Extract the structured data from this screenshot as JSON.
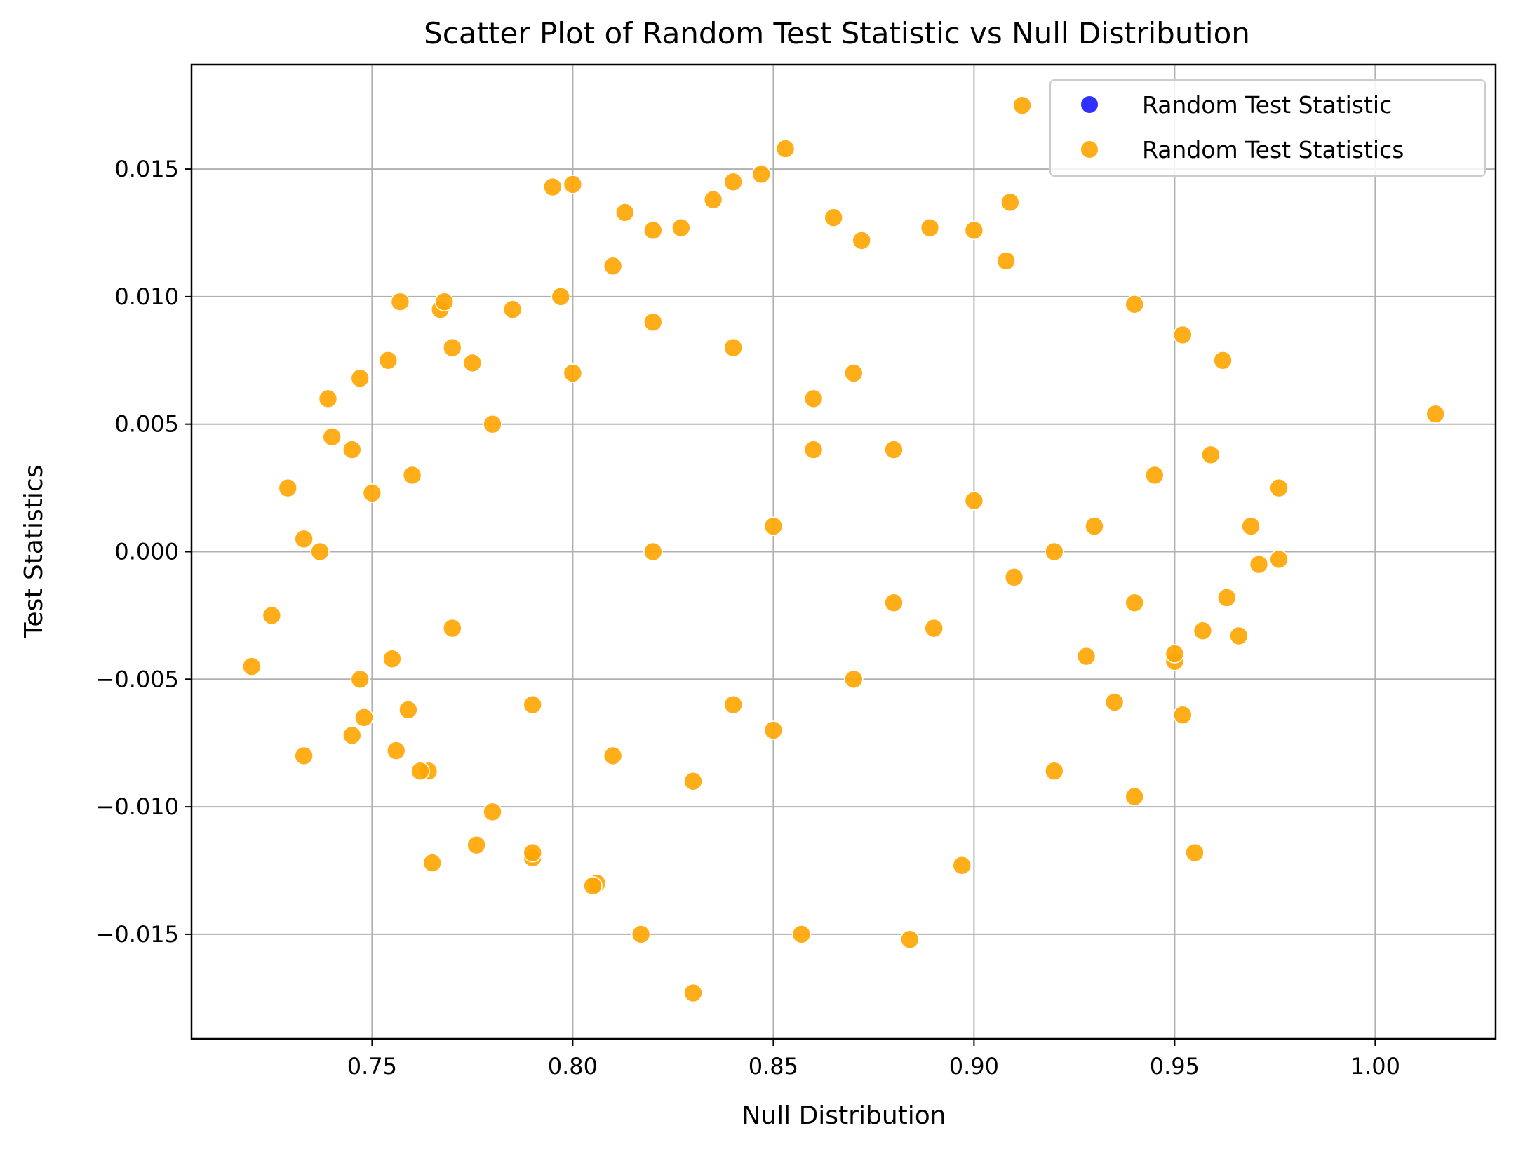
{
  "chart_data": {
    "type": "scatter",
    "title": "Scatter Plot of Random Test Statistic vs Null Distribution",
    "xlabel": "Null Distribution",
    "ylabel": "Test Statistics",
    "xlim": [
      0.705,
      1.03
    ],
    "ylim": [
      -0.0191,
      0.0191
    ],
    "x_ticks": [
      0.75,
      0.8,
      0.85,
      0.9,
      0.95,
      1.0
    ],
    "x_tick_labels": [
      "0.75",
      "0.80",
      "0.85",
      "0.90",
      "0.95",
      "1.00"
    ],
    "y_ticks": [
      -0.015,
      -0.01,
      -0.005,
      0.0,
      0.005,
      0.01,
      0.015
    ],
    "y_tick_labels": [
      "−0.015",
      "−0.010",
      "−0.005",
      "0.000",
      "0.005",
      "0.010",
      "0.015"
    ],
    "grid": true,
    "legend_position": "top-right",
    "series": [
      {
        "name": "Random Test Statistic",
        "color": "#1a1aff",
        "x": [],
        "y": []
      },
      {
        "name": "Random Test Statistics",
        "color": "#ffa500",
        "x": [
          0.72,
          0.725,
          0.729,
          0.733,
          0.733,
          0.737,
          0.739,
          0.74,
          0.745,
          0.745,
          0.747,
          0.747,
          0.748,
          0.754,
          0.756,
          0.757,
          0.759,
          0.764,
          0.765,
          0.767,
          0.768,
          0.776,
          0.77,
          0.785,
          0.79,
          0.795,
          0.797,
          0.8,
          0.806,
          0.813,
          0.817,
          0.83,
          0.847,
          0.853,
          0.857,
          0.884,
          0.909,
          0.912,
          0.952,
          0.955,
          0.94,
          0.962,
          0.969,
          0.976,
          0.976,
          0.971,
          1.015,
          0.959,
          0.957,
          0.966,
          0.963,
          0.95,
          0.952,
          0.94,
          0.935,
          0.928,
          0.92,
          0.908,
          0.9,
          0.897,
          0.889,
          0.872,
          0.865,
          0.84,
          0.835,
          0.827,
          0.82,
          0.81,
          0.805,
          0.79,
          0.78,
          0.775,
          0.762,
          0.755,
          0.75,
          0.76,
          0.77,
          0.78,
          0.79,
          0.8,
          0.81,
          0.82,
          0.83,
          0.84,
          0.85,
          0.86,
          0.87,
          0.88,
          0.89,
          0.9,
          0.91,
          0.92,
          0.93,
          0.94,
          0.945,
          0.95,
          0.82,
          0.85,
          0.88,
          0.86,
          0.84,
          0.87
        ],
        "y": [
          -0.0045,
          -0.0025,
          0.0025,
          0.0005,
          -0.008,
          0.0,
          0.006,
          0.0045,
          0.004,
          -0.0072,
          0.0068,
          -0.005,
          -0.0065,
          0.0075,
          -0.0078,
          0.0098,
          -0.0062,
          -0.0086,
          -0.0122,
          0.0095,
          0.0098,
          -0.0115,
          0.008,
          0.0095,
          -0.012,
          0.0143,
          0.01,
          0.0144,
          -0.013,
          0.0133,
          -0.015,
          -0.0173,
          0.0148,
          0.0158,
          -0.015,
          -0.0152,
          0.0137,
          0.0175,
          0.0085,
          -0.0118,
          -0.0096,
          0.0075,
          0.001,
          0.0025,
          -0.0003,
          -0.0005,
          0.0054,
          0.0038,
          -0.0031,
          -0.0033,
          -0.0018,
          -0.0043,
          -0.0064,
          0.0097,
          -0.0059,
          -0.0041,
          -0.0086,
          0.0114,
          0.0126,
          -0.0123,
          0.0127,
          0.0122,
          0.0131,
          0.0145,
          0.0138,
          0.0127,
          0.0126,
          0.0112,
          -0.0131,
          -0.0118,
          -0.0102,
          0.0074,
          -0.0086,
          -0.0042,
          0.0023,
          0.003,
          -0.003,
          0.005,
          -0.006,
          0.007,
          -0.008,
          0.009,
          -0.009,
          0.008,
          -0.007,
          0.006,
          -0.005,
          0.004,
          -0.003,
          0.002,
          -0.001,
          0.0,
          0.001,
          -0.002,
          0.003,
          -0.004,
          0.0,
          0.001,
          -0.002,
          0.004,
          -0.006,
          0.007
        ]
      }
    ]
  }
}
